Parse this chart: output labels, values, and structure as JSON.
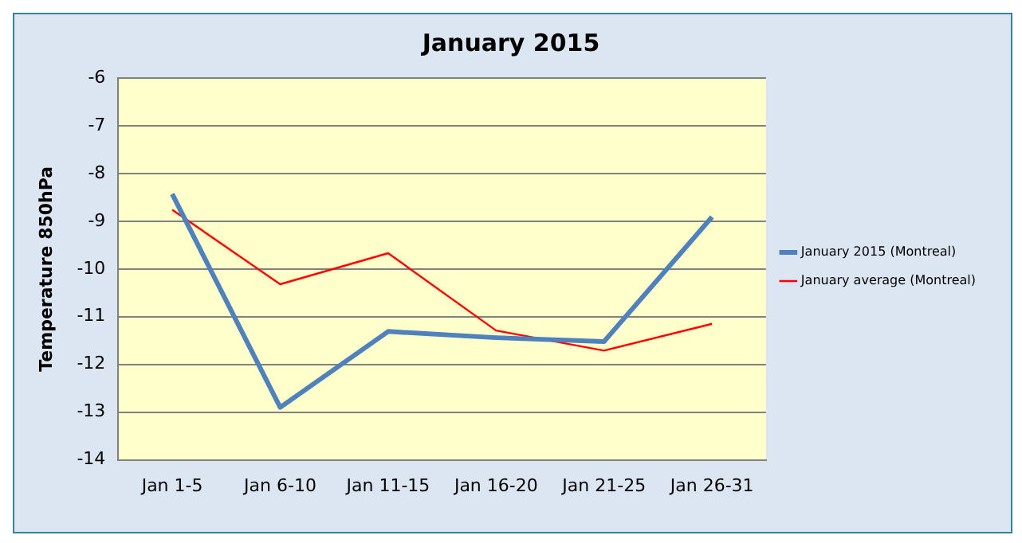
{
  "chart_data": {
    "type": "line",
    "title": "January 2015",
    "ylabel": "Temperature 850hPa",
    "categories": [
      "Jan 1-5",
      "Jan 6-10",
      "Jan 11-15",
      "Jan 16-20",
      "Jan 21-25",
      "Jan 26-31"
    ],
    "series": [
      {
        "name": "January 2015 (Montreal)",
        "color": "#4f81bd",
        "values": [
          -8.43,
          -12.9,
          -11.31,
          -11.44,
          -11.52,
          -8.91
        ]
      },
      {
        "name": "January average (Montreal)",
        "color": "#ff0000",
        "values": [
          -8.76,
          -10.32,
          -9.67,
          -11.29,
          -11.71,
          -11.15
        ]
      }
    ],
    "ylim": [
      -14,
      -6
    ],
    "yticks": [
      -14,
      -13,
      -12,
      -11,
      -10,
      -9,
      -8,
      -7,
      -6
    ],
    "grid": "y",
    "legend": "right",
    "marker": "none"
  }
}
